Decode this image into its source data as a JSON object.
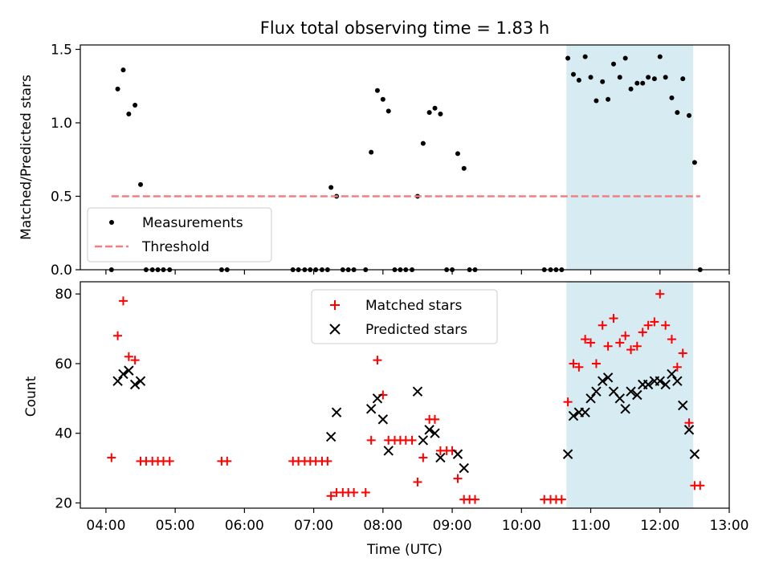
{
  "figure": {
    "title": "Flux total observing time = 1.83 h"
  },
  "chart_data": [
    {
      "type": "scatter",
      "ylabel": "Matched/Predicted stars",
      "xlabel": "",
      "xlim": [
        3.63,
        13.0
      ],
      "ylim": [
        0.0,
        1.53
      ],
      "yticks": [
        0.0,
        0.5,
        1.0,
        1.5
      ],
      "ytick_labels": [
        "0.0",
        "0.5",
        "1.0",
        "1.5"
      ],
      "highlight_span": {
        "x": [
          10.65,
          12.48
        ],
        "color": "#add8e6"
      },
      "legend": {
        "location": "lower-left",
        "entries": [
          "Measurements",
          "Threshold"
        ]
      },
      "series": [
        {
          "name": "Measurements",
          "marker": "dot",
          "color": "#000000",
          "points": [
            [
              4.08,
              0.0
            ],
            [
              4.17,
              1.23
            ],
            [
              4.25,
              1.36
            ],
            [
              4.33,
              1.06
            ],
            [
              4.42,
              1.12
            ],
            [
              4.5,
              0.58
            ],
            [
              4.58,
              0.0
            ],
            [
              4.67,
              0.0
            ],
            [
              4.75,
              0.0
            ],
            [
              4.83,
              0.0
            ],
            [
              4.92,
              0.0
            ],
            [
              5.67,
              0.0
            ],
            [
              5.75,
              0.0
            ],
            [
              6.7,
              0.0
            ],
            [
              6.78,
              0.0
            ],
            [
              6.87,
              0.0
            ],
            [
              6.95,
              0.0
            ],
            [
              7.03,
              0.0
            ],
            [
              7.12,
              0.0
            ],
            [
              7.2,
              0.0
            ],
            [
              7.25,
              0.56
            ],
            [
              7.33,
              0.5
            ],
            [
              7.42,
              0.0
            ],
            [
              7.5,
              0.0
            ],
            [
              7.58,
              0.0
            ],
            [
              7.75,
              0.0
            ],
            [
              7.83,
              0.8
            ],
            [
              7.92,
              1.22
            ],
            [
              8.0,
              1.16
            ],
            [
              8.08,
              1.08
            ],
            [
              8.17,
              0.0
            ],
            [
              8.25,
              0.0
            ],
            [
              8.33,
              0.0
            ],
            [
              8.42,
              0.0
            ],
            [
              8.5,
              0.5
            ],
            [
              8.58,
              0.86
            ],
            [
              8.67,
              1.07
            ],
            [
              8.75,
              1.1
            ],
            [
              8.83,
              1.06
            ],
            [
              8.92,
              0.0
            ],
            [
              9.0,
              0.0
            ],
            [
              9.08,
              0.79
            ],
            [
              9.17,
              0.69
            ],
            [
              9.25,
              0.0
            ],
            [
              9.33,
              0.0
            ],
            [
              10.33,
              0.0
            ],
            [
              10.42,
              0.0
            ],
            [
              10.5,
              0.0
            ],
            [
              10.58,
              0.0
            ],
            [
              10.67,
              1.44
            ],
            [
              10.75,
              1.33
            ],
            [
              10.83,
              1.29
            ],
            [
              10.92,
              1.45
            ],
            [
              11.0,
              1.31
            ],
            [
              11.08,
              1.15
            ],
            [
              11.17,
              1.28
            ],
            [
              11.25,
              1.16
            ],
            [
              11.33,
              1.4
            ],
            [
              11.42,
              1.31
            ],
            [
              11.5,
              1.44
            ],
            [
              11.58,
              1.23
            ],
            [
              11.67,
              1.27
            ],
            [
              11.75,
              1.27
            ],
            [
              11.83,
              1.31
            ],
            [
              11.92,
              1.3
            ],
            [
              12.0,
              1.45
            ],
            [
              12.08,
              1.31
            ],
            [
              12.17,
              1.17
            ],
            [
              12.25,
              1.07
            ],
            [
              12.33,
              1.3
            ],
            [
              12.42,
              1.05
            ],
            [
              12.5,
              0.73
            ],
            [
              12.58,
              0.0
            ]
          ]
        },
        {
          "name": "Threshold",
          "style": "dashed",
          "color": "#f08080",
          "points": [
            [
              4.08,
              0.5
            ],
            [
              12.58,
              0.5
            ]
          ]
        }
      ]
    },
    {
      "type": "scatter",
      "ylabel": "Count",
      "xlabel": "Time (UTC)",
      "xlim": [
        3.63,
        13.0
      ],
      "ylim": [
        18.5,
        83.5
      ],
      "xticks": [
        4,
        5,
        6,
        7,
        8,
        9,
        10,
        11,
        12,
        13
      ],
      "xtick_labels": [
        "04:00",
        "05:00",
        "06:00",
        "07:00",
        "08:00",
        "09:00",
        "10:00",
        "11:00",
        "12:00",
        "13:00"
      ],
      "yticks": [
        20,
        40,
        60,
        80
      ],
      "ytick_labels": [
        "20",
        "40",
        "60",
        "80"
      ],
      "highlight_span": {
        "x": [
          10.65,
          12.48
        ],
        "color": "#add8e6"
      },
      "legend": {
        "location": "upper-center",
        "entries": [
          "Matched stars",
          "Predicted stars"
        ]
      },
      "series": [
        {
          "name": "Matched stars",
          "marker": "plus",
          "color": "#ff0000",
          "points": [
            [
              4.08,
              33
            ],
            [
              4.17,
              68
            ],
            [
              4.25,
              78
            ],
            [
              4.33,
              62
            ],
            [
              4.42,
              61
            ],
            [
              4.5,
              32
            ],
            [
              4.58,
              32
            ],
            [
              4.67,
              32
            ],
            [
              4.75,
              32
            ],
            [
              4.83,
              32
            ],
            [
              4.92,
              32
            ],
            [
              5.67,
              32
            ],
            [
              5.75,
              32
            ],
            [
              6.7,
              32
            ],
            [
              6.78,
              32
            ],
            [
              6.87,
              32
            ],
            [
              6.95,
              32
            ],
            [
              7.03,
              32
            ],
            [
              7.12,
              32
            ],
            [
              7.2,
              32
            ],
            [
              7.25,
              22
            ],
            [
              7.33,
              23
            ],
            [
              7.42,
              23
            ],
            [
              7.5,
              23
            ],
            [
              7.58,
              23
            ],
            [
              7.75,
              23
            ],
            [
              7.83,
              38
            ],
            [
              7.92,
              61
            ],
            [
              8.0,
              51
            ],
            [
              8.08,
              38
            ],
            [
              8.17,
              38
            ],
            [
              8.25,
              38
            ],
            [
              8.33,
              38
            ],
            [
              8.42,
              38
            ],
            [
              8.5,
              26
            ],
            [
              8.58,
              33
            ],
            [
              8.67,
              44
            ],
            [
              8.75,
              44
            ],
            [
              8.83,
              35
            ],
            [
              8.92,
              35
            ],
            [
              9.0,
              35
            ],
            [
              9.08,
              27
            ],
            [
              9.17,
              21
            ],
            [
              9.25,
              21
            ],
            [
              9.33,
              21
            ],
            [
              10.33,
              21
            ],
            [
              10.42,
              21
            ],
            [
              10.5,
              21
            ],
            [
              10.58,
              21
            ],
            [
              10.67,
              49
            ],
            [
              10.75,
              60
            ],
            [
              10.83,
              59
            ],
            [
              10.92,
              67
            ],
            [
              11.0,
              66
            ],
            [
              11.08,
              60
            ],
            [
              11.17,
              71
            ],
            [
              11.25,
              65
            ],
            [
              11.33,
              73
            ],
            [
              11.42,
              66
            ],
            [
              11.5,
              68
            ],
            [
              11.58,
              64
            ],
            [
              11.67,
              65
            ],
            [
              11.75,
              69
            ],
            [
              11.83,
              71
            ],
            [
              11.92,
              72
            ],
            [
              12.0,
              80
            ],
            [
              12.08,
              71
            ],
            [
              12.17,
              67
            ],
            [
              12.25,
              59
            ],
            [
              12.33,
              63
            ],
            [
              12.42,
              43
            ],
            [
              12.5,
              25
            ],
            [
              12.58,
              25
            ]
          ]
        },
        {
          "name": "Predicted stars",
          "marker": "x",
          "color": "#000000",
          "points": [
            [
              4.17,
              55
            ],
            [
              4.25,
              57
            ],
            [
              4.33,
              58
            ],
            [
              4.42,
              54
            ],
            [
              4.5,
              55
            ],
            [
              7.25,
              39
            ],
            [
              7.33,
              46
            ],
            [
              7.83,
              47
            ],
            [
              7.92,
              50
            ],
            [
              8.0,
              44
            ],
            [
              8.08,
              35
            ],
            [
              8.5,
              52
            ],
            [
              8.58,
              38
            ],
            [
              8.67,
              41
            ],
            [
              8.75,
              40
            ],
            [
              8.83,
              33
            ],
            [
              9.08,
              34
            ],
            [
              9.17,
              30
            ],
            [
              10.67,
              34
            ],
            [
              10.75,
              45
            ],
            [
              10.83,
              46
            ],
            [
              10.92,
              46
            ],
            [
              11.0,
              50
            ],
            [
              11.08,
              52
            ],
            [
              11.17,
              55
            ],
            [
              11.25,
              56
            ],
            [
              11.33,
              52
            ],
            [
              11.42,
              50
            ],
            [
              11.5,
              47
            ],
            [
              11.58,
              52
            ],
            [
              11.67,
              51
            ],
            [
              11.75,
              54
            ],
            [
              11.83,
              54
            ],
            [
              11.92,
              55
            ],
            [
              12.0,
              55
            ],
            [
              12.08,
              54
            ],
            [
              12.17,
              57
            ],
            [
              12.25,
              55
            ],
            [
              12.33,
              48
            ],
            [
              12.42,
              41
            ],
            [
              12.5,
              34
            ]
          ]
        }
      ]
    }
  ]
}
